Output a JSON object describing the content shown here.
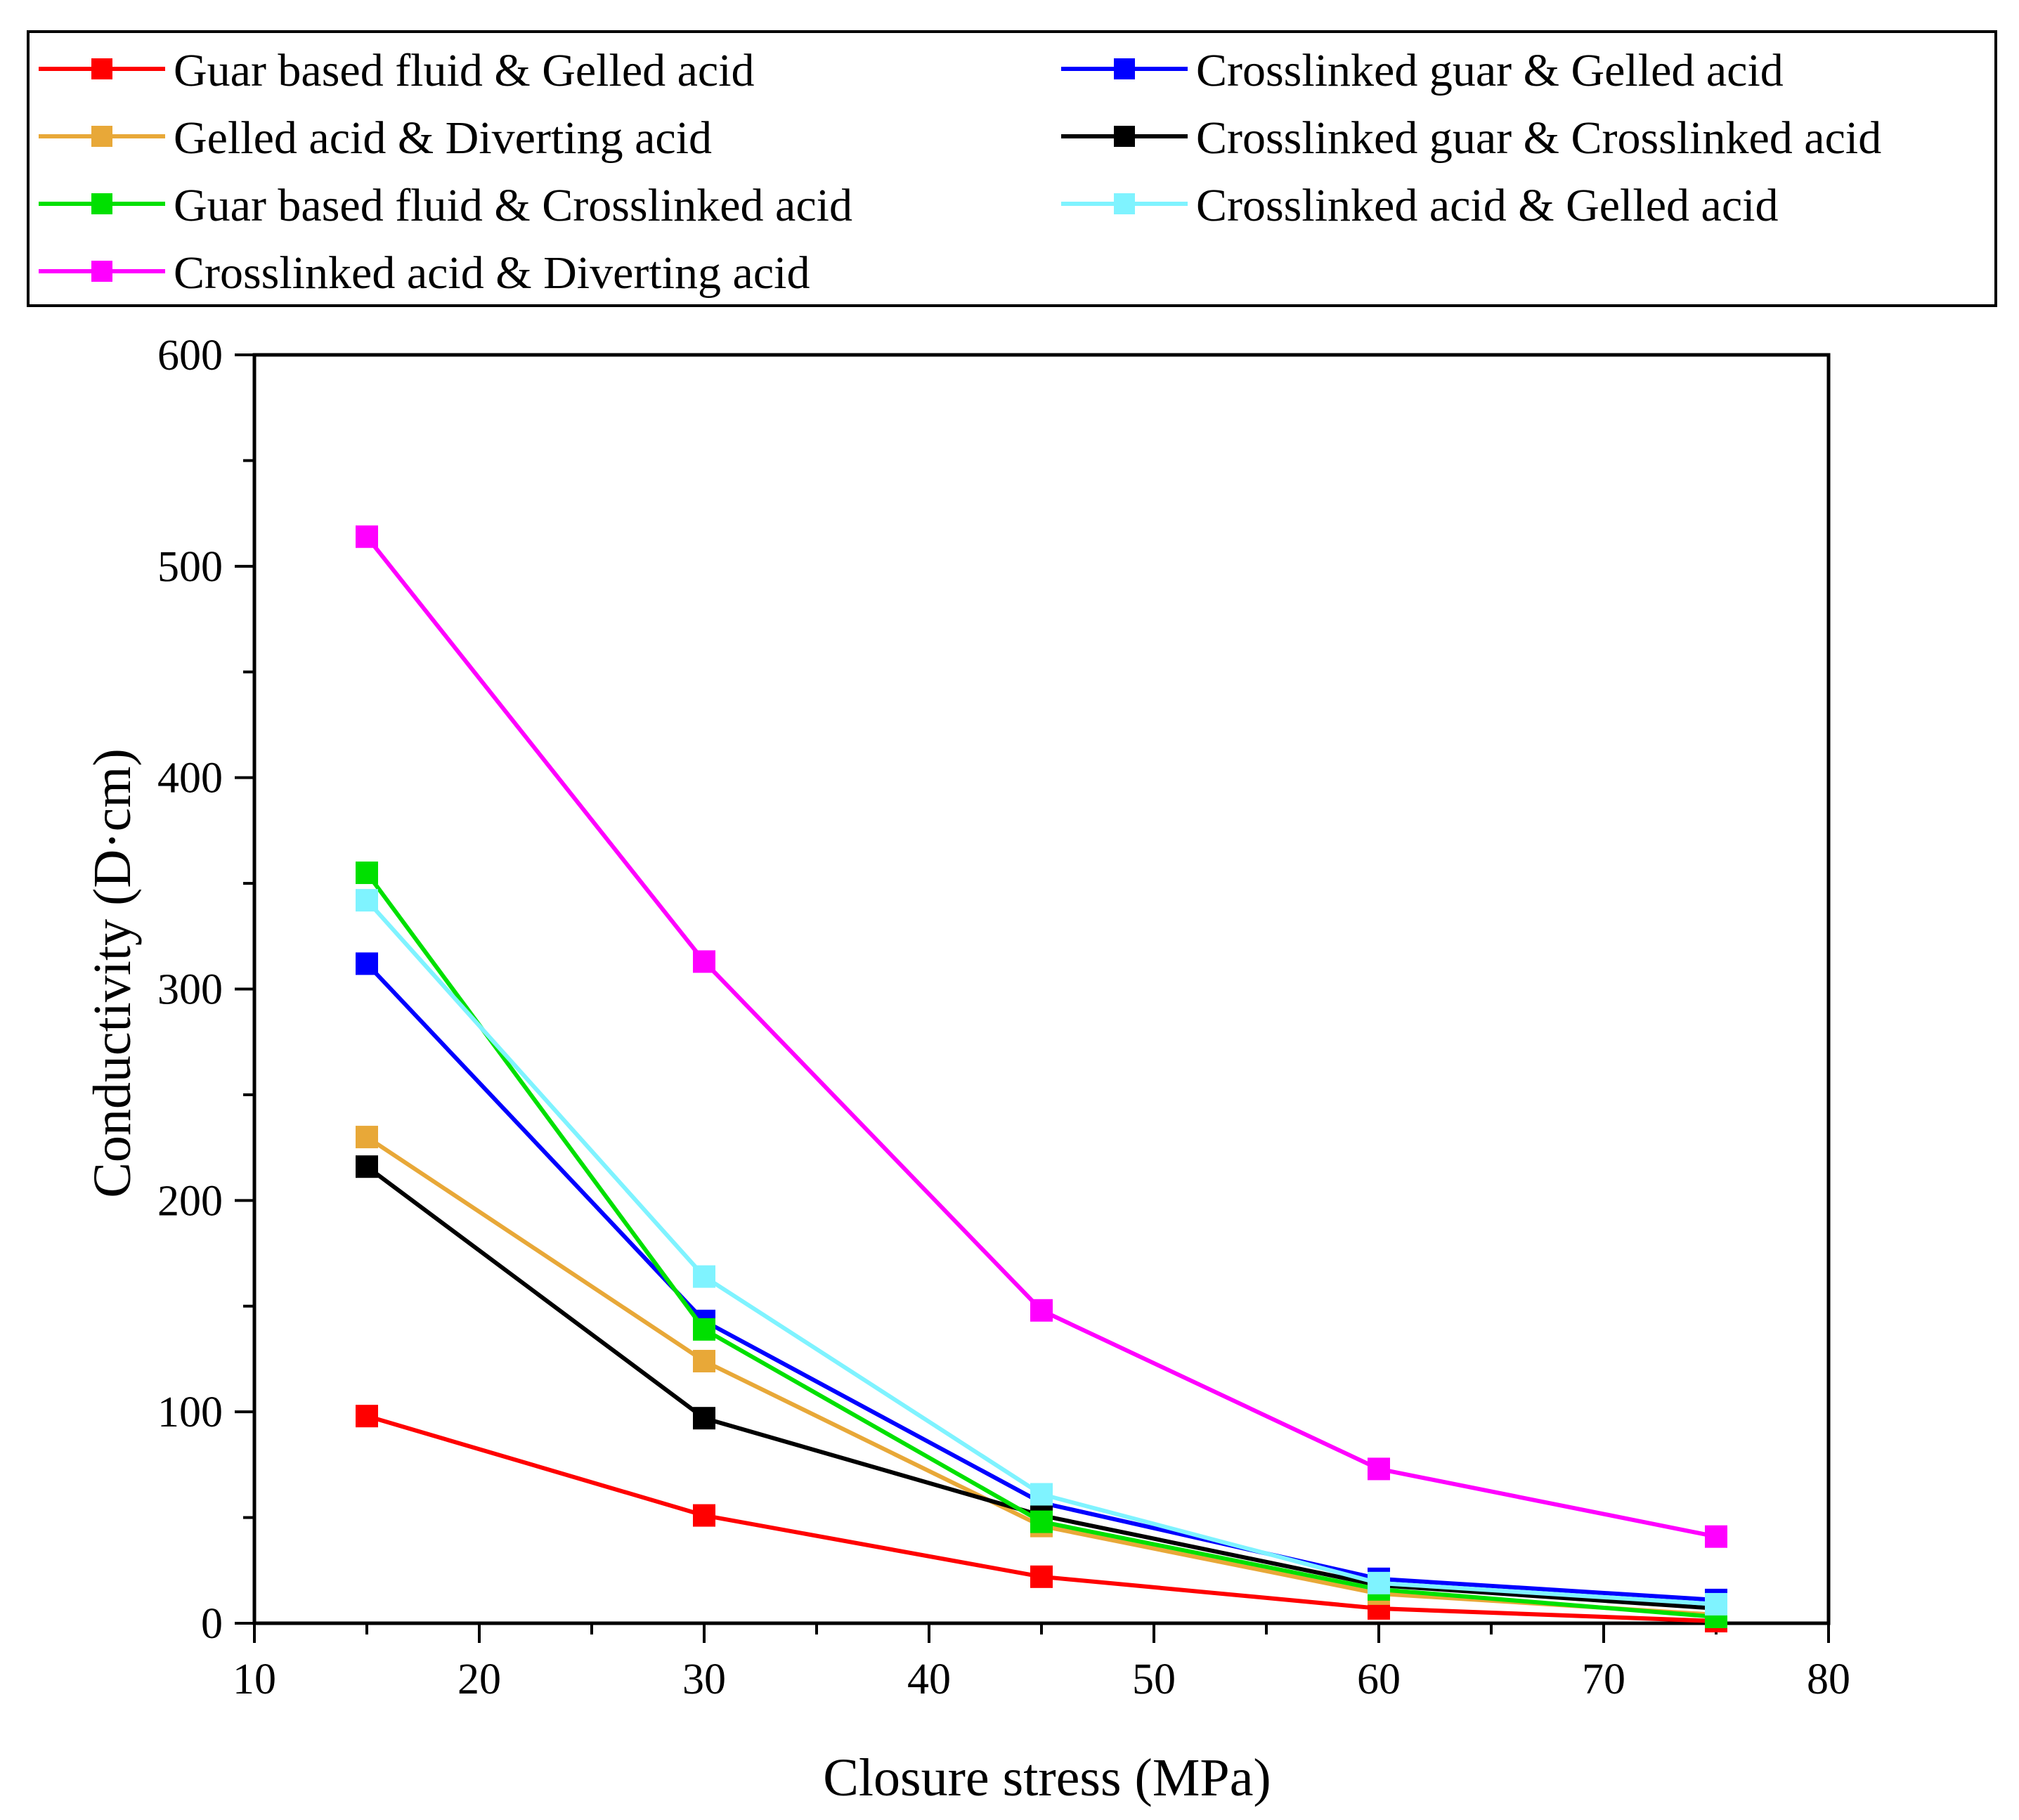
{
  "chart_data": {
    "type": "line",
    "title": "",
    "xlabel": "Closure stress (MPa)",
    "ylabel": "Conductivity (D·cm)",
    "xlim": [
      10,
      80
    ],
    "ylim": [
      0,
      600
    ],
    "xticks": [
      10,
      20,
      30,
      40,
      50,
      60,
      70,
      80
    ],
    "yticks": [
      0,
      100,
      200,
      300,
      400,
      500,
      600
    ],
    "x": [
      15,
      30,
      45,
      60,
      75
    ],
    "legend_position": "top",
    "series": [
      {
        "name": "Guar based fluid & Gelled acid",
        "color": "#ff0000",
        "values": [
          98,
          51,
          22,
          7,
          1
        ]
      },
      {
        "name": "Crosslinked guar & Gelled acid",
        "color": "#0000ff",
        "values": [
          312,
          143,
          57,
          21,
          11
        ]
      },
      {
        "name": "Gelled acid & Diverting acid",
        "color": "#e8a838",
        "values": [
          230,
          124,
          46,
          14,
          4
        ]
      },
      {
        "name": "Crosslinked guar & Crosslinked acid",
        "color": "#000000",
        "values": [
          216,
          97,
          51,
          18,
          7
        ]
      },
      {
        "name": "Guar based fluid & Crosslinked acid",
        "color": "#00e000",
        "values": [
          355,
          139,
          48,
          16,
          3
        ]
      },
      {
        "name": "Crosslinked acid & Gelled acid",
        "color": "#7ff3ff",
        "values": [
          342,
          164,
          61,
          19,
          9
        ]
      },
      {
        "name": "Crosslinked acid & Diverting acid",
        "color": "#ff00ff",
        "values": [
          514,
          313,
          148,
          73,
          41
        ]
      }
    ]
  }
}
